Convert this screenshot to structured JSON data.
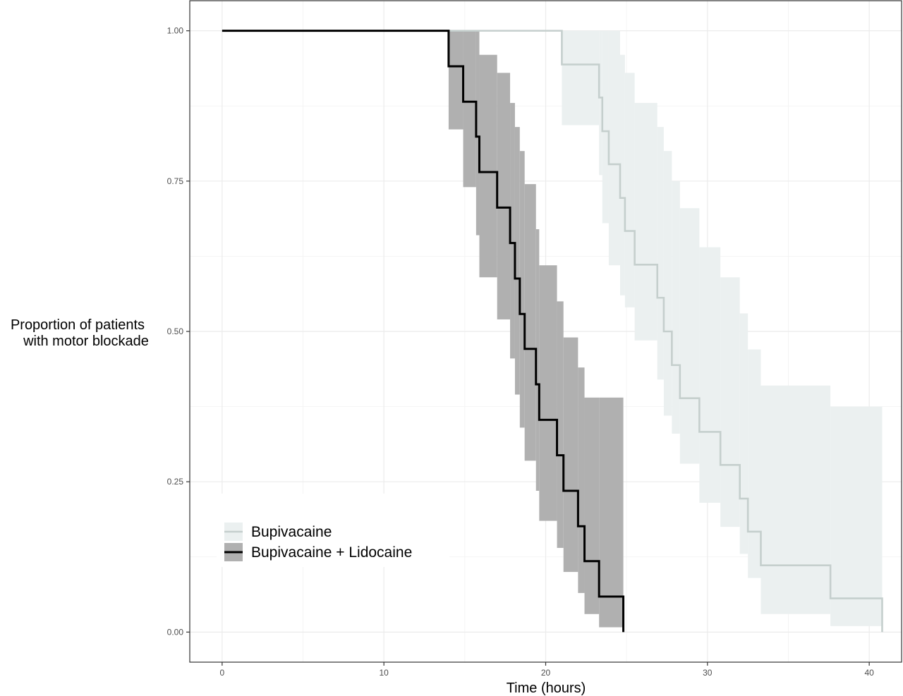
{
  "chart_data": {
    "type": "line",
    "subtype": "kaplan-meier step curve with confidence bands",
    "xlabel": "Time (hours)",
    "ylabel": [
      "Proportion of patients",
      "with motor blockade"
    ],
    "xlim": [
      -2,
      42
    ],
    "ylim": [
      -0.05,
      1.05
    ],
    "x_ticks": [
      0,
      10,
      20,
      30,
      40
    ],
    "x_tick_labels": [
      "0",
      "10",
      "20",
      "30",
      "40"
    ],
    "y_ticks": [
      0,
      0.25,
      0.5,
      0.75,
      1.0
    ],
    "y_tick_labels": [
      "0.00",
      "0.25",
      "0.50",
      "0.75",
      "1.00"
    ],
    "grid": true,
    "legend_position": "bottom-left",
    "series": [
      {
        "name": "Bupivacaine",
        "line_color": "#c5cfcd",
        "band_color": "#ebf0f0",
        "steps": [
          {
            "x": 0,
            "y": 1.0,
            "lo": 1.0,
            "hi": 1.0
          },
          {
            "x": 21.0,
            "y": 0.944,
            "lo": 0.843,
            "hi": 1.0
          },
          {
            "x": 23.3,
            "y": 0.889,
            "lo": 0.76,
            "hi": 1.0
          },
          {
            "x": 23.5,
            "y": 0.833,
            "lo": 0.68,
            "hi": 1.0
          },
          {
            "x": 23.9,
            "y": 0.778,
            "lo": 0.61,
            "hi": 1.0
          },
          {
            "x": 24.6,
            "y": 0.722,
            "lo": 0.56,
            "hi": 0.96
          },
          {
            "x": 24.9,
            "y": 0.667,
            "lo": 0.54,
            "hi": 0.93
          },
          {
            "x": 25.5,
            "y": 0.611,
            "lo": 0.485,
            "hi": 0.88
          },
          {
            "x": 26.9,
            "y": 0.556,
            "lo": 0.42,
            "hi": 0.84
          },
          {
            "x": 27.3,
            "y": 0.5,
            "lo": 0.36,
            "hi": 0.8
          },
          {
            "x": 27.8,
            "y": 0.444,
            "lo": 0.33,
            "hi": 0.75
          },
          {
            "x": 28.3,
            "y": 0.389,
            "lo": 0.28,
            "hi": 0.705
          },
          {
            "x": 29.5,
            "y": 0.333,
            "lo": 0.215,
            "hi": 0.64
          },
          {
            "x": 30.8,
            "y": 0.278,
            "lo": 0.175,
            "hi": 0.59
          },
          {
            "x": 32.0,
            "y": 0.222,
            "lo": 0.13,
            "hi": 0.53
          },
          {
            "x": 32.5,
            "y": 0.167,
            "lo": 0.09,
            "hi": 0.47
          },
          {
            "x": 33.3,
            "y": 0.111,
            "lo": 0.03,
            "hi": 0.41
          },
          {
            "x": 37.6,
            "y": 0.056,
            "lo": 0.01,
            "hi": 0.375
          },
          {
            "x": 40.8,
            "y": 0.0,
            "lo": 0.0,
            "hi": 0.0
          }
        ]
      },
      {
        "name": "Bupivacaine + Lidocaine",
        "line_color": "#000000",
        "band_color": "#b0b0b0",
        "steps": [
          {
            "x": 0,
            "y": 1.0,
            "lo": 1.0,
            "hi": 1.0
          },
          {
            "x": 14.0,
            "y": 0.941,
            "lo": 0.836,
            "hi": 1.0
          },
          {
            "x": 14.9,
            "y": 0.882,
            "lo": 0.74,
            "hi": 1.0
          },
          {
            "x": 15.7,
            "y": 0.824,
            "lo": 0.66,
            "hi": 1.0
          },
          {
            "x": 15.9,
            "y": 0.765,
            "lo": 0.59,
            "hi": 0.96
          },
          {
            "x": 17.0,
            "y": 0.706,
            "lo": 0.52,
            "hi": 0.93
          },
          {
            "x": 17.8,
            "y": 0.647,
            "lo": 0.455,
            "hi": 0.88
          },
          {
            "x": 18.1,
            "y": 0.588,
            "lo": 0.395,
            "hi": 0.84
          },
          {
            "x": 18.4,
            "y": 0.529,
            "lo": 0.34,
            "hi": 0.8
          },
          {
            "x": 18.7,
            "y": 0.471,
            "lo": 0.285,
            "hi": 0.745
          },
          {
            "x": 19.4,
            "y": 0.412,
            "lo": 0.235,
            "hi": 0.67
          },
          {
            "x": 19.6,
            "y": 0.353,
            "lo": 0.185,
            "hi": 0.61
          },
          {
            "x": 20.7,
            "y": 0.294,
            "lo": 0.14,
            "hi": 0.55
          },
          {
            "x": 21.1,
            "y": 0.235,
            "lo": 0.1,
            "hi": 0.49
          },
          {
            "x": 22.0,
            "y": 0.176,
            "lo": 0.065,
            "hi": 0.44
          },
          {
            "x": 22.4,
            "y": 0.118,
            "lo": 0.03,
            "hi": 0.39
          },
          {
            "x": 23.3,
            "y": 0.059,
            "lo": 0.008,
            "hi": 0.39
          },
          {
            "x": 24.8,
            "y": 0.0,
            "lo": 0.0,
            "hi": 0.0
          }
        ]
      }
    ]
  }
}
